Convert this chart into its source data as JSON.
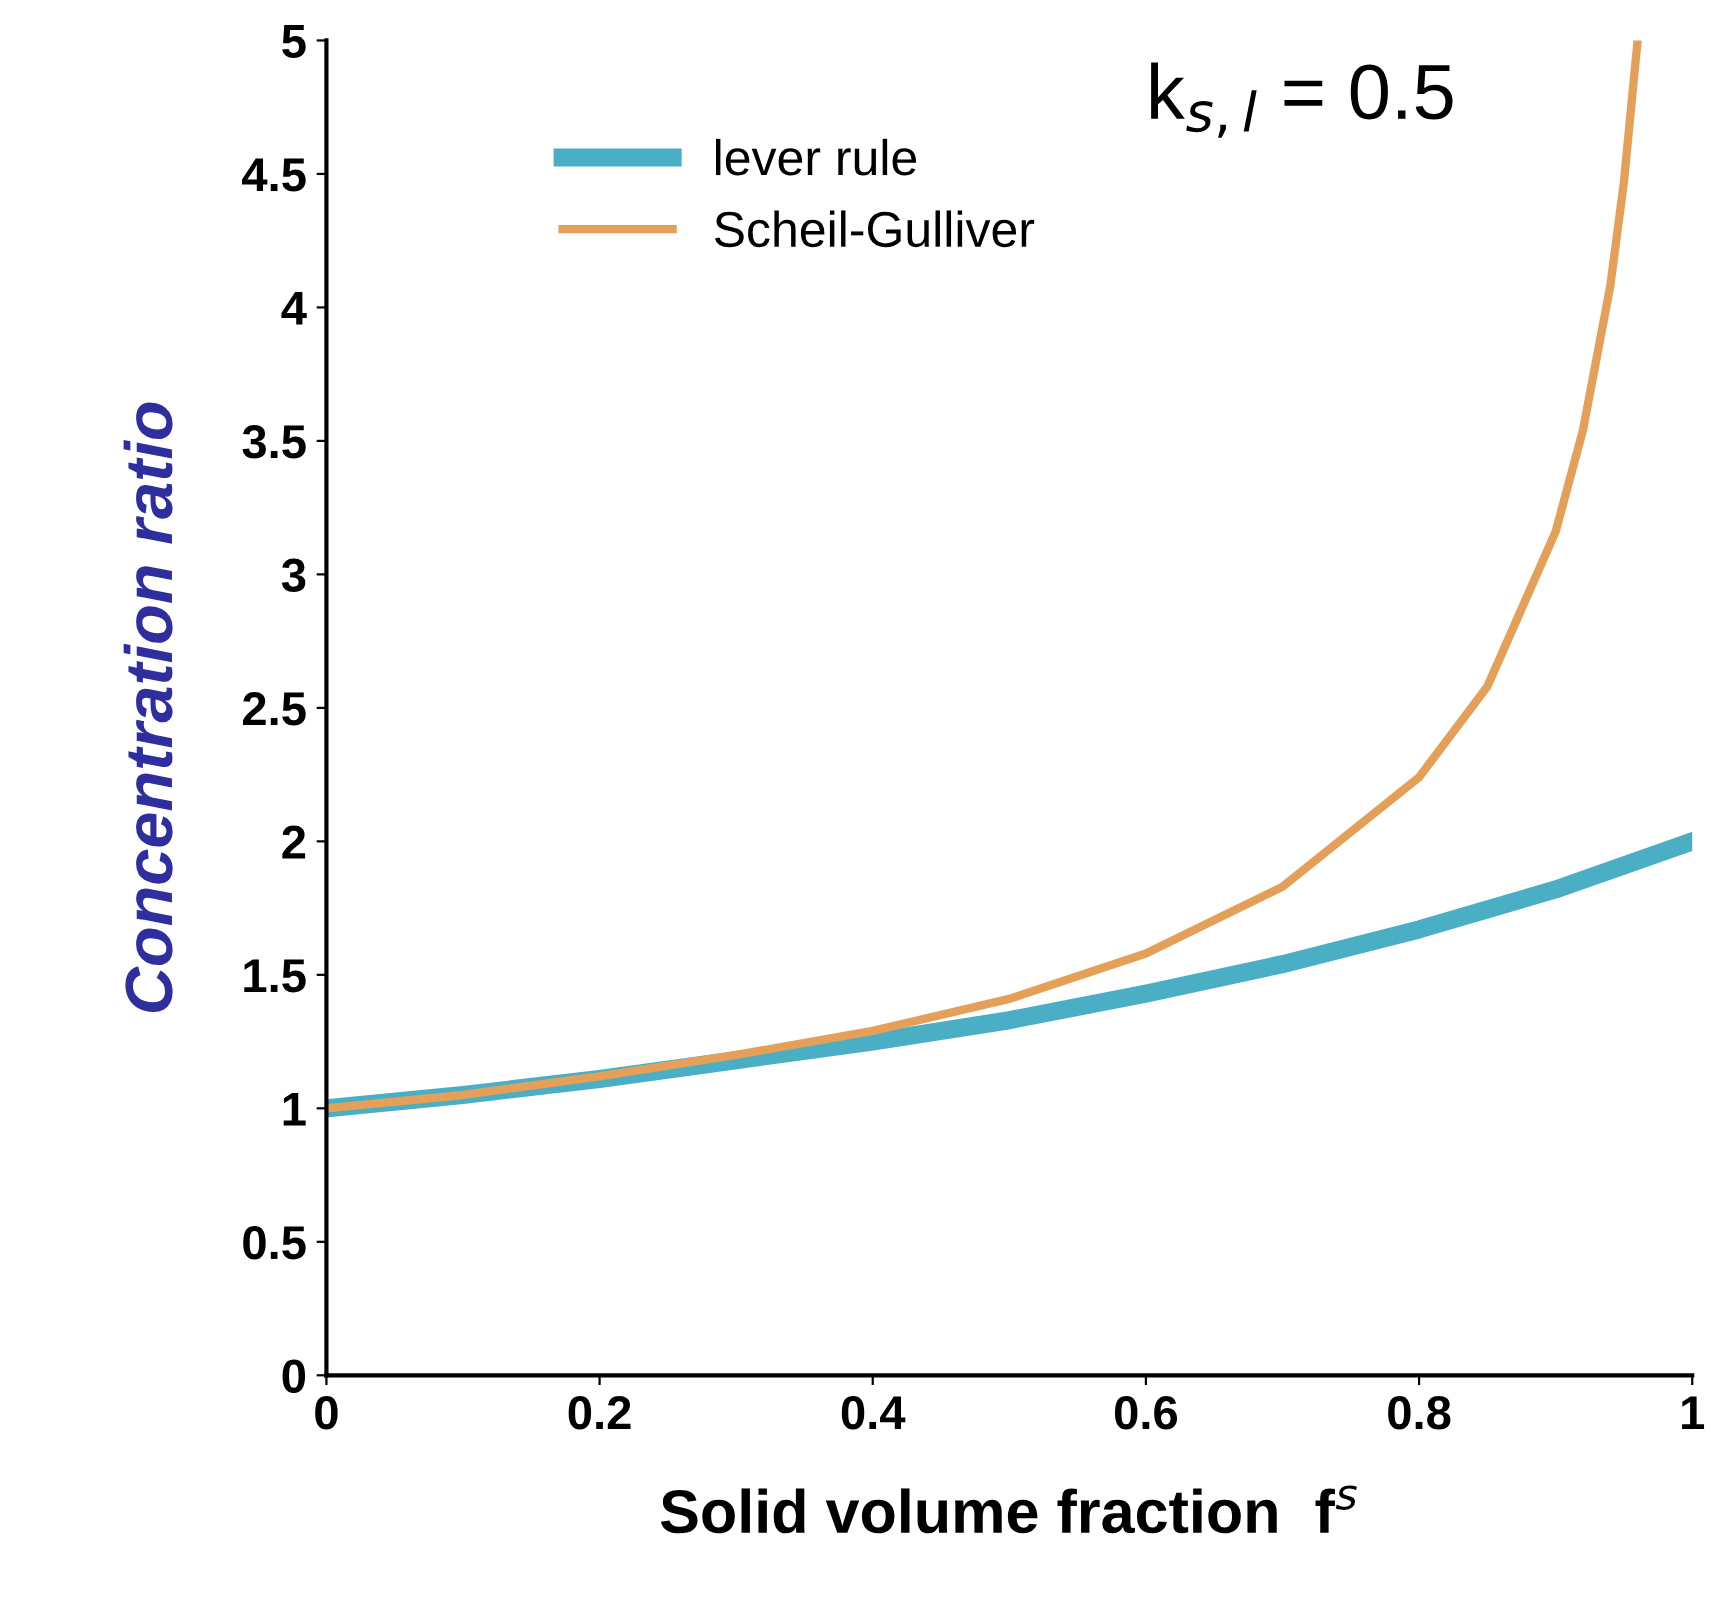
{
  "chart_data": {
    "type": "line",
    "xlabel": "Solid volume fraction  f$^{s}$",
    "ylabel": "Concentration ratio",
    "annotations": [
      "k$_{s,l}$ = 0.5"
    ],
    "series": [
      {
        "name": "lever rule",
        "color": "#4aafc4",
        "x": [
          0,
          0.1,
          0.2,
          0.3,
          0.4,
          0.5,
          0.6,
          0.7,
          0.8,
          0.9,
          1
        ],
        "values": [
          1,
          1.05,
          1.11,
          1.18,
          1.25,
          1.33,
          1.43,
          1.54,
          1.67,
          1.82,
          2
        ]
      },
      {
        "name": "Scheil-Gulliver",
        "color": "#e4a058",
        "x": [
          0,
          0.1,
          0.2,
          0.3,
          0.4,
          0.5,
          0.6,
          0.7,
          0.8,
          0.85,
          0.9,
          0.92,
          0.94,
          0.95,
          0.96
        ],
        "values": [
          1,
          1.05,
          1.12,
          1.2,
          1.29,
          1.41,
          1.58,
          1.83,
          2.24,
          2.58,
          3.16,
          3.54,
          4.08,
          4.47,
          5
        ]
      }
    ],
    "xlim": [
      0,
      1
    ],
    "ylim": [
      0,
      5
    ],
    "xticks": [
      0,
      0.2,
      0.4,
      0.6,
      0.8,
      1
    ],
    "yticks": [
      0,
      0.5,
      1,
      1.5,
      2,
      2.5,
      3,
      3.5,
      4,
      4.5,
      5
    ],
    "grid": false,
    "legend": "top left",
    "marker": "none",
    "line_style": "solid"
  }
}
